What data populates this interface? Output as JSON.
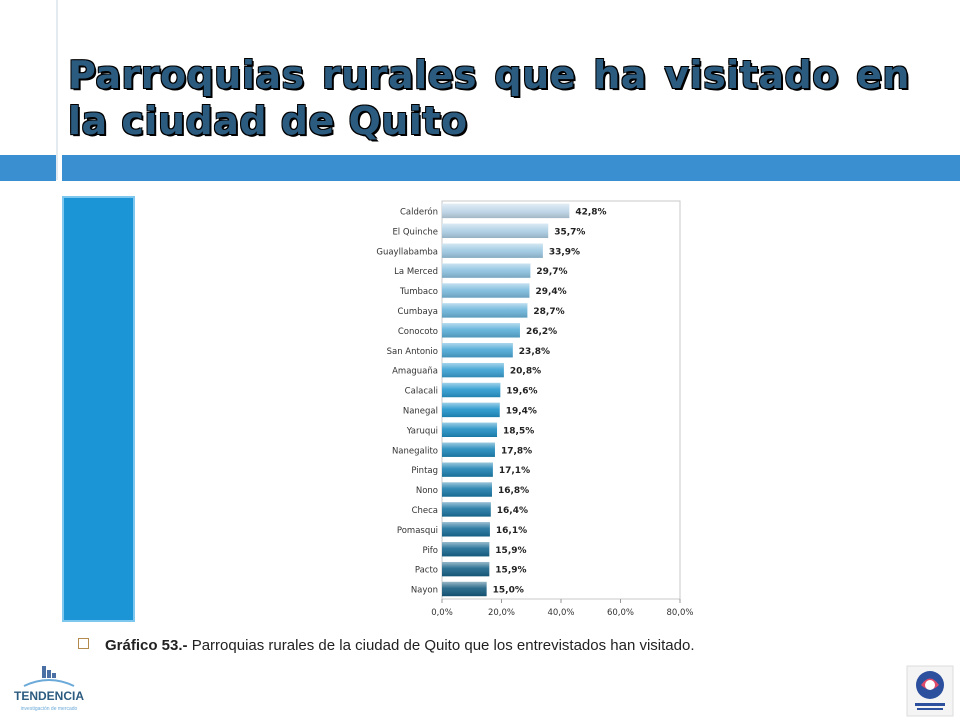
{
  "title": "Parroquias rurales que ha visitado en la ciudad de Quito",
  "caption": {
    "label": "Gráfico 53.-",
    "text": " Parroquias rurales de la ciudad de Quito que los entrevistados han visitado."
  },
  "logos": {
    "left_name": "TENDENCIA",
    "left_sub": "investigación de mercado",
    "right_name": "Empresa Metropolitana Quito Turismo"
  },
  "colors": {
    "title": "#2c5b80",
    "accent_bar": "#3a8fd0",
    "side_panel": "#1b95d6"
  },
  "chart_data": {
    "type": "bar",
    "orientation": "horizontal",
    "categories": [
      "Calderón",
      "El Quinche",
      "Guayllabamba",
      "La Merced",
      "Tumbaco",
      "Cumbaya",
      "Conocoto",
      "San Antonio",
      "Amaguaña",
      "Calacali",
      "Nanegal",
      "Yaruqui",
      "Nanegalito",
      "Pintag",
      "Nono",
      "Checa",
      "Pomasqui",
      "Pifo",
      "Pacto",
      "Nayon"
    ],
    "values": [
      42.8,
      35.7,
      33.9,
      29.7,
      29.4,
      28.7,
      26.2,
      23.8,
      20.8,
      19.6,
      19.4,
      18.5,
      17.8,
      17.1,
      16.8,
      16.4,
      16.1,
      15.9,
      15.9,
      15.0
    ],
    "data_labels": [
      "42,8%",
      "35,7%",
      "33,9%",
      "29,7%",
      "29,4%",
      "28,7%",
      "26,2%",
      "23,8%",
      "20,8%",
      "19,6%",
      "19,4%",
      "18,5%",
      "17,8%",
      "17,1%",
      "16,8%",
      "16,4%",
      "16,1%",
      "15,9%",
      "15,9%",
      "15,0%"
    ],
    "x_ticks": [
      "0,0%",
      "20,0%",
      "40,0%",
      "60,0%",
      "80,0%"
    ],
    "xlim": [
      0,
      80
    ],
    "grid": false,
    "legend": "none"
  }
}
